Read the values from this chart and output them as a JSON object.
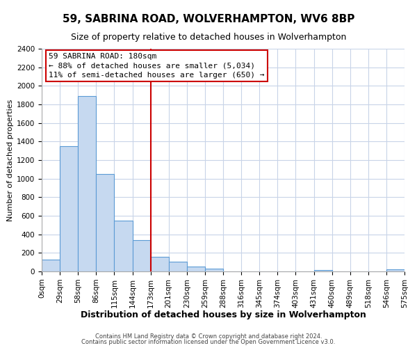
{
  "title": "59, SABRINA ROAD, WOLVERHAMPTON, WV6 8BP",
  "subtitle": "Size of property relative to detached houses in Wolverhampton",
  "xlabel": "Distribution of detached houses by size in Wolverhampton",
  "ylabel": "Number of detached properties",
  "footer_lines": [
    "Contains HM Land Registry data © Crown copyright and database right 2024.",
    "Contains public sector information licensed under the Open Government Licence v3.0."
  ],
  "bin_labels": [
    "0sqm",
    "29sqm",
    "58sqm",
    "86sqm",
    "115sqm",
    "144sqm",
    "173sqm",
    "201sqm",
    "230sqm",
    "259sqm",
    "288sqm",
    "316sqm",
    "345sqm",
    "374sqm",
    "403sqm",
    "431sqm",
    "460sqm",
    "489sqm",
    "518sqm",
    "546sqm",
    "575sqm"
  ],
  "bar_values": [
    125,
    1350,
    1890,
    1050,
    550,
    340,
    160,
    105,
    55,
    30,
    0,
    0,
    0,
    0,
    0,
    15,
    0,
    0,
    0,
    20
  ],
  "bar_color": "#c6d9f0",
  "bar_edge_color": "#5b9bd5",
  "vline_x": 6.0,
  "vline_color": "#cc0000",
  "annotation_line1": "59 SABRINA ROAD: 180sqm",
  "annotation_line2": "← 88% of detached houses are smaller (5,034)",
  "annotation_line3": "11% of semi-detached houses are larger (650) →",
  "annotation_box_edge": "#cc0000",
  "annotation_box_face": "#ffffff",
  "ylim": [
    0,
    2400
  ],
  "yticks": [
    0,
    200,
    400,
    600,
    800,
    1000,
    1200,
    1400,
    1600,
    1800,
    2000,
    2200,
    2400
  ],
  "background_color": "#ffffff",
  "grid_color": "#c8d4e8",
  "title_fontsize": 11,
  "subtitle_fontsize": 9,
  "xlabel_fontsize": 9,
  "ylabel_fontsize": 8,
  "tick_fontsize": 7.5,
  "annotation_fontsize": 8
}
